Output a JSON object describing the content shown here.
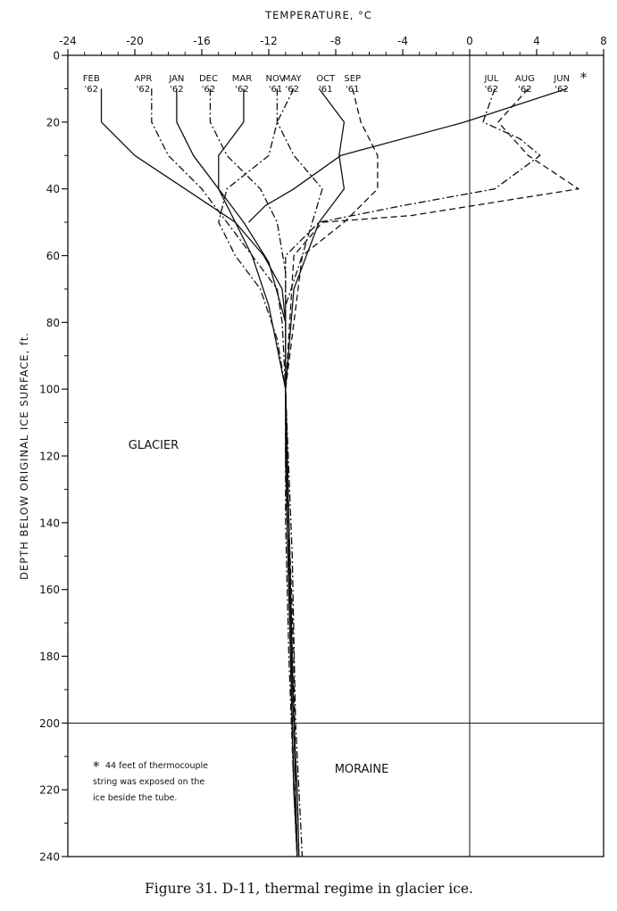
{
  "chart_data": {
    "type": "line",
    "title": "",
    "xlabel": "TEMPERATURE, °C",
    "ylabel": "DEPTH BELOW ORIGINAL ICE SURFACE, ft.",
    "x_axis_position": "top",
    "y_axis_inverted": true,
    "xlim": [
      -24,
      8
    ],
    "ylim": [
      0,
      240
    ],
    "x_ticks": [
      "-24",
      "-20",
      "-16",
      "-12",
      "-8",
      "-4",
      "0",
      "4",
      "8"
    ],
    "y_ticks": [
      "0",
      "20",
      "40",
      "60",
      "80",
      "100",
      "120",
      "140",
      "160",
      "180",
      "200",
      "220",
      "240"
    ],
    "grid": false,
    "reference_lines": [
      {
        "axis": "x",
        "value": 0
      },
      {
        "axis": "y",
        "value": 200
      }
    ],
    "series": [
      {
        "name": "FEB '62",
        "label_top": "FEB",
        "label_bottom": "'62",
        "label_temp": -22.6,
        "style": "solid",
        "x": [
          -22,
          -22,
          -20,
          -17,
          -14,
          -12.3,
          -11.2,
          -11,
          -11,
          -11,
          -10.8,
          -10.5,
          -10.3,
          -10.2
        ],
        "y": [
          10,
          20,
          30,
          40,
          50,
          60,
          70,
          80,
          100,
          120,
          160,
          200,
          220,
          240
        ]
      },
      {
        "name": "APR '62",
        "label_top": "APR",
        "label_bottom": "'62",
        "label_temp": -19.5,
        "style": "dashdot",
        "x": [
          -19,
          -19,
          -18,
          -16,
          -14.5,
          -13,
          -11.5,
          -11.2,
          -11,
          -10.8,
          -10.7,
          -10.5,
          -10.3
        ],
        "y": [
          10,
          20,
          30,
          40,
          50,
          60,
          70,
          80,
          100,
          140,
          180,
          220,
          240
        ]
      },
      {
        "name": "JAN '62",
        "label_top": "JAN",
        "label_bottom": "'62",
        "label_temp": -17.5,
        "style": "solid",
        "x": [
          -17.5,
          -17.5,
          -16.5,
          -15,
          -13.5,
          -12,
          -11,
          -11,
          -10.8,
          -10.6,
          -10.4,
          -10.3
        ],
        "y": [
          10,
          20,
          30,
          40,
          50,
          62,
          80,
          100,
          140,
          180,
          220,
          240
        ]
      },
      {
        "name": "DEC '62",
        "label_top": "DEC",
        "label_bottom": "'62",
        "label_temp": -15.6,
        "style": "dashdot",
        "x": [
          -15.5,
          -15.5,
          -14.5,
          -12.5,
          -11.5,
          -11,
          -11,
          -10.6,
          -10.4,
          -10.2,
          -10.0
        ],
        "y": [
          10,
          20,
          30,
          40,
          50,
          65,
          100,
          150,
          200,
          220,
          240
        ]
      },
      {
        "name": "MAR '62",
        "label_top": "MAR",
        "label_bottom": "'62",
        "label_temp": -13.6,
        "style": "solid",
        "x": [
          -13.5,
          -13.5,
          -15,
          -15,
          -14,
          -13,
          -12,
          -11,
          -10.8,
          -10.7,
          -10.5,
          -10.3
        ],
        "y": [
          10,
          20,
          30,
          40,
          50,
          60,
          75,
          100,
          140,
          180,
          220,
          240
        ]
      },
      {
        "name": "NOV '61",
        "label_top": "NOV",
        "label_bottom": "'61",
        "label_temp": -11.6,
        "style": "dashdot",
        "x": [
          -11.5,
          -11.5,
          -10.5,
          -8.8,
          -10,
          -11,
          -11,
          -10.9,
          -10.7,
          -10.5,
          -10.3
        ],
        "y": [
          10,
          20,
          30,
          40,
          60,
          75,
          100,
          140,
          180,
          220,
          240
        ]
      },
      {
        "name": "MAY '62",
        "label_top": "MAY",
        "label_bottom": "'62",
        "label_temp": -10.6,
        "style": "dashdot",
        "x": [
          -10.5,
          -11.5,
          -12,
          -14.5,
          -15,
          -14,
          -12.5,
          -11.5,
          -11,
          -11,
          -10.8,
          -10.5,
          -10.3
        ],
        "y": [
          10,
          20,
          30,
          40,
          50,
          60,
          70,
          85,
          100,
          140,
          180,
          220,
          240
        ]
      },
      {
        "name": "OCT '61",
        "label_top": "OCT",
        "label_bottom": "'61",
        "label_temp": -8.6,
        "style": "solid",
        "x": [
          -9,
          -7.5,
          -7.8,
          -7.5,
          -9,
          -10.5,
          -11,
          -10.9,
          -10.7,
          -10.5,
          -10.3
        ],
        "y": [
          10,
          20,
          30,
          40,
          50,
          70,
          100,
          140,
          180,
          220,
          240
        ]
      },
      {
        "name": "SEP '61",
        "label_top": "SEP",
        "label_bottom": "'61",
        "label_temp": -7.0,
        "style": "dashed",
        "x": [
          -7,
          -6.5,
          -5.5,
          -5.5,
          -7.5,
          -10,
          -11,
          -10.8,
          -10.5,
          -10.4,
          -10.3
        ],
        "y": [
          10,
          20,
          30,
          40,
          50,
          60,
          100,
          140,
          180,
          220,
          240
        ]
      },
      {
        "name": "JUL '62",
        "label_top": "JUL",
        "label_bottom": "'62",
        "label_temp": 1.3,
        "style": "dashdot",
        "x": [
          1.5,
          0.8,
          3,
          4.2,
          1.5,
          -4,
          -9,
          -11,
          -11,
          -10.8,
          -10.6,
          -10.4,
          -10.3
        ],
        "y": [
          10,
          20,
          25,
          30,
          40,
          45,
          50,
          60,
          100,
          140,
          180,
          220,
          240
        ]
      },
      {
        "name": "AUG '62",
        "label_top": "AUG",
        "label_bottom": "'62",
        "label_temp": 3.3,
        "style": "dashed",
        "x": [
          3.5,
          1.7,
          3.5,
          6.5,
          -3.5,
          -8.8,
          -10.5,
          -11,
          -10.8,
          -10.6,
          -10.4,
          -10.3
        ],
        "y": [
          10,
          20,
          30,
          40,
          48,
          50,
          60,
          100,
          140,
          180,
          220,
          240
        ]
      },
      {
        "name": "JUN '62",
        "label_top": "JUN",
        "label_bottom": "'62",
        "label_temp": 5.5,
        "style": "solid",
        "x": [
          5.8,
          -0.3,
          -7.7,
          -10.5,
          -12.2,
          -13.2
        ],
        "y": [
          10,
          20,
          30,
          40,
          45,
          50
        ]
      }
    ],
    "annotations": {
      "glacier": "GLACIER",
      "moraine": "MORAINE",
      "asterisk": "*",
      "note_lines": [
        "44 feet of thermocouple",
        "string was exposed on the",
        "ice beside the tube."
      ]
    }
  },
  "caption": "Figure 31.  D-11,  thermal regime in glacier ice."
}
